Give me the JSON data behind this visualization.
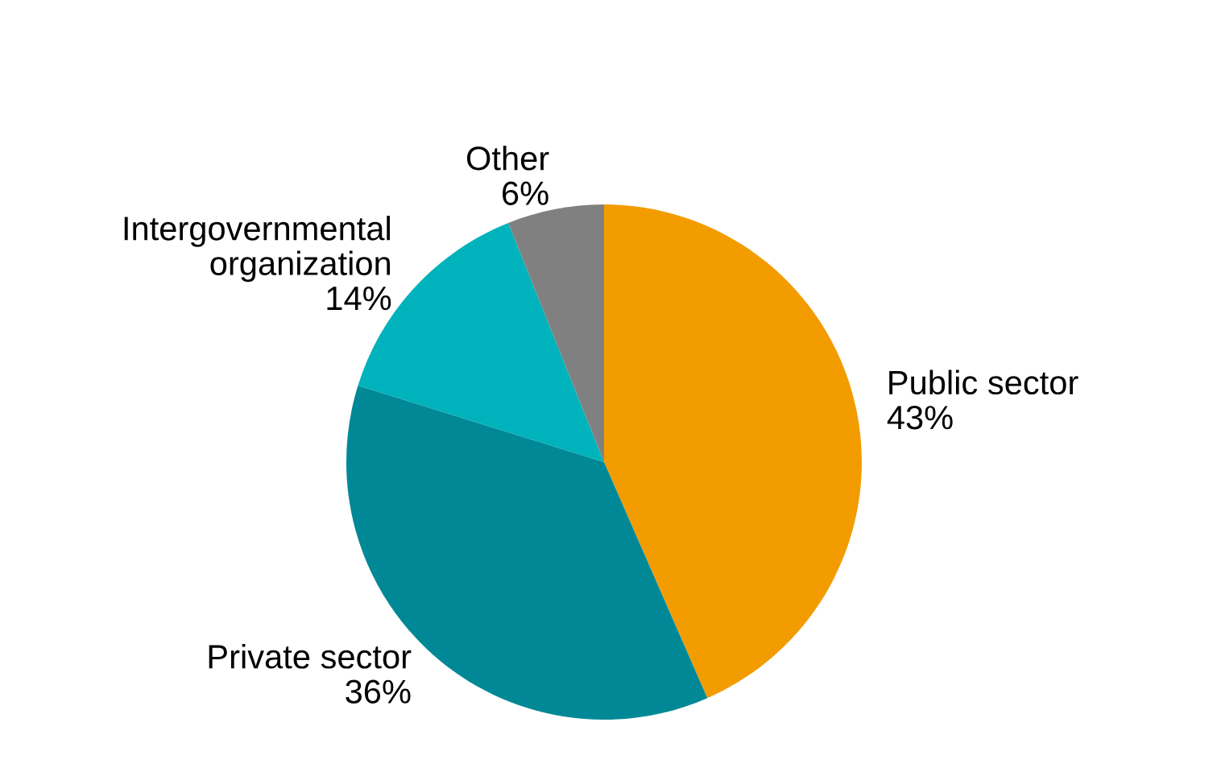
{
  "chart_data": {
    "type": "pie",
    "categories": [
      "Public sector",
      "Private sector",
      "Intergovernmental organization",
      "Other"
    ],
    "values": [
      43,
      36,
      14,
      6
    ],
    "colors": [
      "#f39c00",
      "#008896",
      "#00b2bb",
      "#808080"
    ],
    "value_labels": [
      "43%",
      "36%",
      "14%",
      "6%"
    ]
  }
}
